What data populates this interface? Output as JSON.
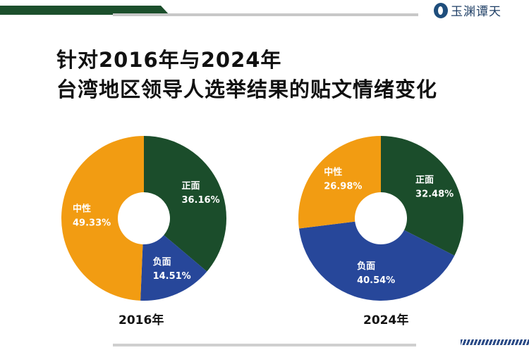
{
  "header": {
    "logo_text": "玉渊谭天"
  },
  "title": {
    "line1": "针对2016年与2024年",
    "line2": "台湾地区领导人选举结果的贴文情绪变化"
  },
  "chart_data": [
    {
      "type": "pie",
      "donut": true,
      "title": "2016年",
      "categories": [
        "正面",
        "负面",
        "中性"
      ],
      "values": [
        36.16,
        14.51,
        49.33
      ],
      "labels": [
        "36.16%",
        "14.51%",
        "49.33%"
      ],
      "colors": [
        "#1b4d2b",
        "#27479a",
        "#f29c12"
      ]
    },
    {
      "type": "pie",
      "donut": true,
      "title": "2024年",
      "categories": [
        "正面",
        "负面",
        "中性"
      ],
      "values": [
        32.48,
        40.54,
        26.98
      ],
      "labels": [
        "32.48%",
        "40.54%",
        "26.98%"
      ],
      "colors": [
        "#1b4d2b",
        "#27479a",
        "#f29c12"
      ]
    }
  ]
}
